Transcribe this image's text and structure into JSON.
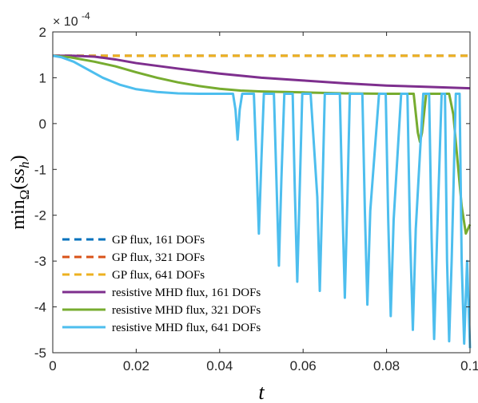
{
  "chart_data": {
    "type": "line",
    "xlabel": "t",
    "ylabel_prefix": "min",
    "ylabel_sub": "Ω",
    "ylabel_arg": "(s",
    "ylabel_arg_sub": "h",
    "ylabel_close": ")",
    "exponent_base": "× 10",
    "exponent_power": "-4",
    "xlim": [
      0,
      0.1
    ],
    "ylim": [
      -5,
      2
    ],
    "xticks": [
      0,
      0.02,
      0.04,
      0.06,
      0.08,
      0.1
    ],
    "xtick_labels": [
      "0",
      "0.02",
      "0.04",
      "0.06",
      "0.08",
      "0.1"
    ],
    "yticks": [
      -5,
      -4,
      -3,
      -2,
      -1,
      0,
      1,
      2
    ],
    "ytick_labels": [
      "-5",
      "-4",
      "-3",
      "-2",
      "-1",
      "0",
      "1",
      "2"
    ],
    "grid": false,
    "legend_position": "bottom-left",
    "series": [
      {
        "name": "GP flux, 161 DOFs",
        "color": "#0072bd",
        "dash": "dashed",
        "x": [
          0,
          0.1
        ],
        "y": [
          1.48,
          1.48
        ]
      },
      {
        "name": "GP flux, 321 DOFs",
        "color": "#d95319",
        "dash": "dashed",
        "x": [
          0,
          0.1
        ],
        "y": [
          1.48,
          1.48
        ]
      },
      {
        "name": "GP flux, 641 DOFs",
        "color": "#edb120",
        "dash": "dashed",
        "x": [
          0,
          0.1
        ],
        "y": [
          1.48,
          1.48
        ]
      },
      {
        "name": "resistive MHD flux, 161 DOFs",
        "color": "#7e2f8e",
        "dash": "solid",
        "x": [
          0,
          0.005,
          0.01,
          0.015,
          0.02,
          0.03,
          0.04,
          0.05,
          0.06,
          0.07,
          0.08,
          0.09,
          0.1
        ],
        "y": [
          1.48,
          1.48,
          1.46,
          1.4,
          1.32,
          1.2,
          1.09,
          1.0,
          0.94,
          0.88,
          0.83,
          0.8,
          0.77
        ]
      },
      {
        "name": "resistive MHD flux, 321 DOFs",
        "color": "#77ac30",
        "dash": "solid",
        "x": [
          0,
          0.004,
          0.01,
          0.015,
          0.02,
          0.025,
          0.03,
          0.035,
          0.04,
          0.045,
          0.05,
          0.06,
          0.07,
          0.08,
          0.0865,
          0.0875,
          0.088,
          0.0885,
          0.0895,
          0.09,
          0.095,
          0.096,
          0.097,
          0.098,
          0.099,
          0.1
        ],
        "y": [
          1.48,
          1.45,
          1.35,
          1.25,
          1.12,
          1.0,
          0.9,
          0.82,
          0.76,
          0.72,
          0.7,
          0.68,
          0.66,
          0.65,
          0.65,
          -0.2,
          -0.4,
          -0.2,
          0.65,
          0.65,
          0.65,
          0.2,
          -0.8,
          -1.8,
          -2.4,
          -2.2
        ]
      },
      {
        "name": "resistive MHD flux, 641 DOFs",
        "color": "#4dbeee",
        "dash": "solid",
        "x": [
          0,
          0.002,
          0.005,
          0.008,
          0.012,
          0.016,
          0.02,
          0.025,
          0.03,
          0.035,
          0.04,
          0.0432,
          0.0438,
          0.0443,
          0.0448,
          0.0454,
          0.047,
          0.0482,
          0.0488,
          0.0494,
          0.05,
          0.0506,
          0.0515,
          0.053,
          0.0536,
          0.0542,
          0.0548,
          0.0555,
          0.0565,
          0.0575,
          0.058,
          0.0586,
          0.0592,
          0.0598,
          0.0608,
          0.0618,
          0.0634,
          0.064,
          0.0646,
          0.0652,
          0.0666,
          0.0688,
          0.0694,
          0.07,
          0.0706,
          0.0712,
          0.0732,
          0.0742,
          0.0748,
          0.0754,
          0.0761,
          0.0782,
          0.0798,
          0.0804,
          0.081,
          0.0817,
          0.0835,
          0.085,
          0.0856,
          0.0863,
          0.087,
          0.0888,
          0.0902,
          0.0908,
          0.0914,
          0.0921,
          0.0932,
          0.094,
          0.0945,
          0.095,
          0.0956,
          0.0966,
          0.0975,
          0.098,
          0.0986,
          0.0993,
          0.1
        ],
        "y": [
          1.48,
          1.45,
          1.35,
          1.2,
          1.0,
          0.85,
          0.75,
          0.69,
          0.66,
          0.65,
          0.65,
          0.65,
          0.3,
          -0.35,
          0.3,
          0.65,
          0.65,
          0.65,
          -0.8,
          -2.4,
          -0.8,
          0.65,
          0.65,
          0.65,
          -1.2,
          -3.1,
          -1.2,
          0.65,
          0.65,
          0.65,
          -1.4,
          -3.45,
          -1.4,
          0.65,
          0.65,
          0.65,
          -1.6,
          -3.65,
          -1.6,
          0.65,
          0.65,
          0.65,
          -1.7,
          -3.8,
          -1.7,
          0.65,
          0.65,
          0.65,
          -1.9,
          -3.95,
          -1.9,
          0.65,
          0.65,
          -2.1,
          -4.2,
          -2.1,
          0.65,
          0.65,
          -2.3,
          -4.5,
          -2.3,
          0.65,
          0.65,
          -2.5,
          -4.7,
          -2.5,
          0.65,
          0.65,
          -3.0,
          -4.75,
          -3.0,
          0.65,
          0.65,
          -3.0,
          -4.8,
          -3.0,
          -4.9
        ]
      }
    ]
  }
}
